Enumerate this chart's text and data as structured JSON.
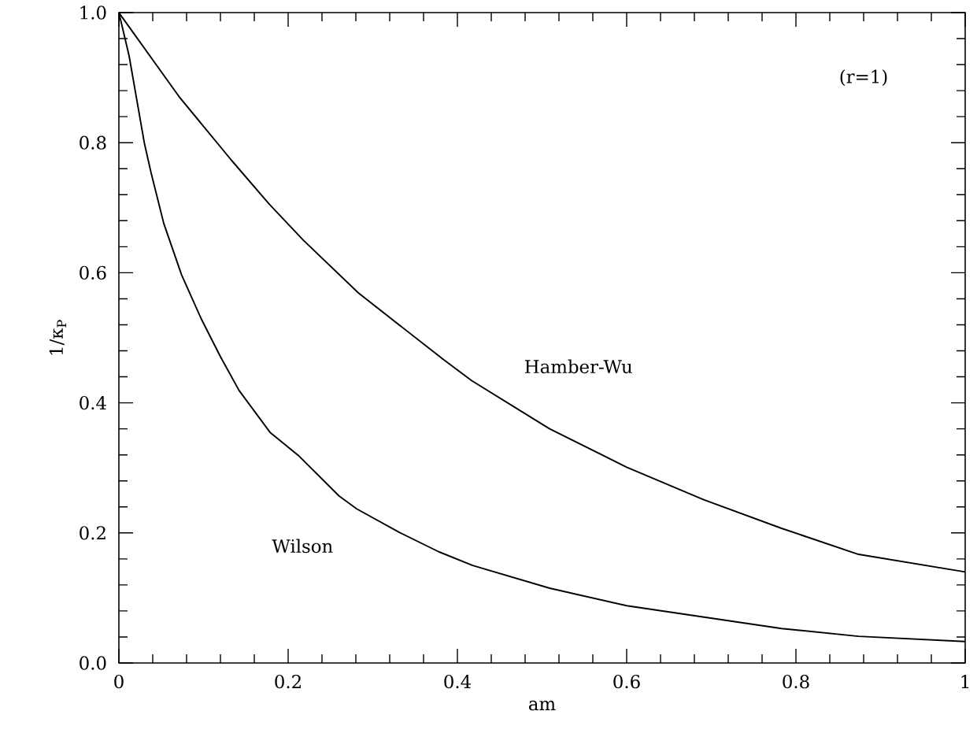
{
  "chart_data": {
    "type": "line",
    "xlabel": "am",
    "ylabel": "1/κ$_{P}$",
    "annotations": [
      "(r=1)"
    ],
    "series": [
      {
        "name": "Hamber-Wu",
        "color": "#000000",
        "x": [
          0,
          0.071,
          0.133,
          0.178,
          0.218,
          0.283,
          0.384,
          0.417,
          0.509,
          0.6,
          0.691,
          0.783,
          0.874,
          1
        ],
        "values": [
          1.0,
          0.871,
          0.773,
          0.705,
          0.65,
          0.569,
          0.466,
          0.434,
          0.36,
          0.301,
          0.251,
          0.207,
          0.167,
          0.14
        ]
      },
      {
        "name": "Wilson",
        "color": "#000000",
        "x": [
          0,
          0.012,
          0.03,
          0.038,
          0.053,
          0.074,
          0.097,
          0.12,
          0.142,
          0.179,
          0.213,
          0.26,
          0.281,
          0.331,
          0.378,
          0.418,
          0.509,
          0.6,
          0.783,
          0.874,
          1
        ],
        "values": [
          1.0,
          0.934,
          0.8,
          0.754,
          0.676,
          0.597,
          0.53,
          0.471,
          0.419,
          0.354,
          0.318,
          0.257,
          0.237,
          0.201,
          0.171,
          0.15,
          0.115,
          0.088,
          0.053,
          0.041,
          0.033
        ]
      }
    ],
    "xlim": [
      0,
      1
    ],
    "ylim": [
      0,
      1
    ],
    "xticks": [
      0,
      0.2,
      0.4,
      0.6,
      0.8,
      1
    ],
    "yticks": [
      {
        "value": 0,
        "label": "0.0"
      },
      {
        "value": 0.2,
        "label": "0.2"
      },
      {
        "value": 0.4,
        "label": "0.4"
      },
      {
        "value": 0.6,
        "label": "0.6"
      },
      {
        "value": 0.8,
        "label": "0.8"
      },
      {
        "value": 1,
        "label": "1.0"
      }
    ]
  }
}
